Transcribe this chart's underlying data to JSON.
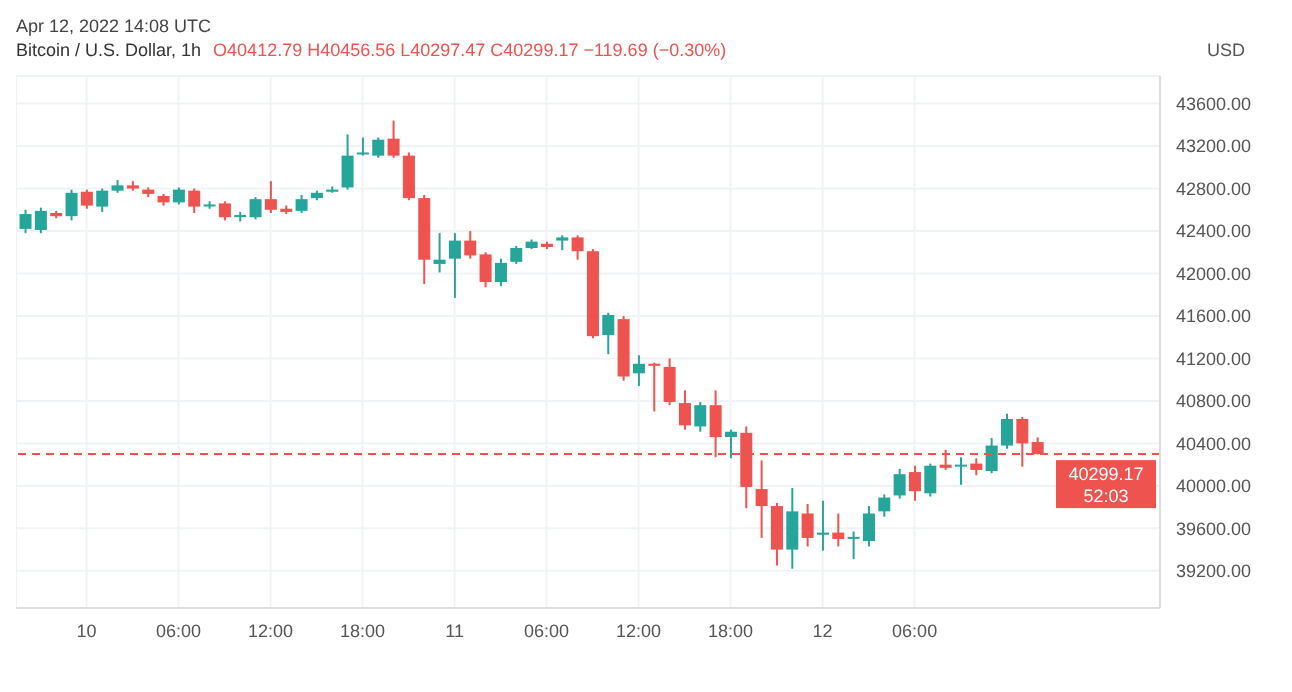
{
  "chart_data": {
    "type": "candlestick",
    "title": "Bitcoin / U.S. Dollar, 1h",
    "subtitle": "O40412.79 H40456.56 L40297.47 C40299.17 −119.69 (−0.30%)",
    "ylabel": "USD",
    "annotations": [
      "Apr 12, 2022 14:08 UTC",
      "52:03"
    ],
    "x": [
      "2022-04-09T20:00",
      "2022-04-09T21:00",
      "2022-04-09T22:00",
      "2022-04-09T23:00",
      "2022-04-10T00:00",
      "2022-04-10T01:00",
      "2022-04-10T02:00",
      "2022-04-10T03:00",
      "2022-04-10T04:00",
      "2022-04-10T05:00",
      "2022-04-10T06:00",
      "2022-04-10T07:00",
      "2022-04-10T08:00",
      "2022-04-10T09:00",
      "2022-04-10T10:00",
      "2022-04-10T11:00",
      "2022-04-10T12:00",
      "2022-04-10T13:00",
      "2022-04-10T14:00",
      "2022-04-10T15:00",
      "2022-04-10T16:00",
      "2022-04-10T17:00",
      "2022-04-10T18:00",
      "2022-04-10T19:00",
      "2022-04-10T20:00",
      "2022-04-10T21:00",
      "2022-04-10T22:00",
      "2022-04-10T23:00",
      "2022-04-11T00:00",
      "2022-04-11T01:00",
      "2022-04-11T02:00",
      "2022-04-11T03:00",
      "2022-04-11T04:00",
      "2022-04-11T05:00",
      "2022-04-11T06:00",
      "2022-04-11T07:00",
      "2022-04-11T08:00",
      "2022-04-11T09:00",
      "2022-04-11T10:00",
      "2022-04-11T11:00",
      "2022-04-11T12:00",
      "2022-04-11T13:00",
      "2022-04-11T14:00",
      "2022-04-11T15:00",
      "2022-04-11T16:00",
      "2022-04-11T17:00",
      "2022-04-11T18:00",
      "2022-04-11T19:00",
      "2022-04-11T20:00",
      "2022-04-11T21:00",
      "2022-04-11T22:00",
      "2022-04-11T23:00",
      "2022-04-12T00:00",
      "2022-04-12T01:00",
      "2022-04-12T02:00",
      "2022-04-12T03:00",
      "2022-04-12T04:00",
      "2022-04-12T05:00",
      "2022-04-12T06:00",
      "2022-04-12T07:00",
      "2022-04-12T08:00",
      "2022-04-12T09:00",
      "2022-04-12T10:00",
      "2022-04-12T11:00",
      "2022-04-12T12:00",
      "2022-04-12T13:00",
      "2022-04-12T14:00"
    ],
    "ohlc": [
      [
        42420,
        42600,
        42380,
        42560
      ],
      [
        42410,
        42620,
        42380,
        42590
      ],
      [
        42570,
        42590,
        42520,
        42540
      ],
      [
        42540,
        42790,
        42500,
        42760
      ],
      [
        42770,
        42790,
        42610,
        42640
      ],
      [
        42630,
        42800,
        42580,
        42780
      ],
      [
        42780,
        42880,
        42760,
        42830
      ],
      [
        42830,
        42870,
        42780,
        42800
      ],
      [
        42790,
        42810,
        42720,
        42750
      ],
      [
        42730,
        42750,
        42640,
        42670
      ],
      [
        42670,
        42810,
        42650,
        42790
      ],
      [
        42780,
        42800,
        42570,
        42630
      ],
      [
        42640,
        42680,
        42610,
        42650
      ],
      [
        42660,
        42680,
        42500,
        42530
      ],
      [
        42540,
        42580,
        42490,
        42550
      ],
      [
        42530,
        42720,
        42510,
        42700
      ],
      [
        42700,
        42870,
        42570,
        42600
      ],
      [
        42610,
        42640,
        42560,
        42580
      ],
      [
        42590,
        42740,
        42570,
        42700
      ],
      [
        42710,
        42780,
        42690,
        42760
      ],
      [
        42770,
        42820,
        42760,
        42790
      ],
      [
        42810,
        43310,
        42790,
        43110
      ],
      [
        43130,
        43280,
        43110,
        43140
      ],
      [
        43110,
        43280,
        43090,
        43260
      ],
      [
        43270,
        43440,
        43090,
        43110
      ],
      [
        43110,
        43140,
        42690,
        42710
      ],
      [
        42710,
        42740,
        41900,
        42130
      ],
      [
        42090,
        42380,
        42010,
        42130
      ],
      [
        42140,
        42380,
        41770,
        42310
      ],
      [
        42310,
        42400,
        42140,
        42170
      ],
      [
        42180,
        42200,
        41870,
        41920
      ],
      [
        41920,
        42140,
        41880,
        42100
      ],
      [
        42110,
        42260,
        42090,
        42240
      ],
      [
        42240,
        42320,
        42230,
        42300
      ],
      [
        42280,
        42300,
        42230,
        42250
      ],
      [
        42310,
        42360,
        42220,
        42340
      ],
      [
        42340,
        42360,
        42130,
        42210
      ],
      [
        42210,
        42230,
        41390,
        41410
      ],
      [
        41420,
        41630,
        41240,
        41610
      ],
      [
        41570,
        41600,
        40990,
        41030
      ],
      [
        41060,
        41230,
        40940,
        41150
      ],
      [
        41150,
        41160,
        40700,
        41140
      ],
      [
        41120,
        41200,
        40760,
        40790
      ],
      [
        40780,
        40900,
        40530,
        40570
      ],
      [
        40560,
        40790,
        40510,
        40760
      ],
      [
        40760,
        40900,
        40270,
        40460
      ],
      [
        40460,
        40530,
        40260,
        40510
      ],
      [
        40500,
        40560,
        39790,
        39990
      ],
      [
        39970,
        40240,
        39510,
        39810
      ],
      [
        39810,
        39840,
        39250,
        39400
      ],
      [
        39400,
        39980,
        39220,
        39760
      ],
      [
        39740,
        39830,
        39430,
        39510
      ],
      [
        39540,
        39860,
        39390,
        39560
      ],
      [
        39560,
        39740,
        39430,
        39500
      ],
      [
        39510,
        39570,
        39310,
        39520
      ],
      [
        39480,
        39810,
        39430,
        39740
      ],
      [
        39760,
        39920,
        39710,
        39890
      ],
      [
        39910,
        40160,
        39880,
        40110
      ],
      [
        40130,
        40190,
        39860,
        39950
      ],
      [
        39930,
        40210,
        39900,
        40190
      ],
      [
        40200,
        40340,
        40150,
        40170
      ],
      [
        40190,
        40270,
        40010,
        40200
      ],
      [
        40210,
        40260,
        40100,
        40150
      ],
      [
        40140,
        40450,
        40120,
        40380
      ],
      [
        40380,
        40680,
        40350,
        40630
      ],
      [
        40630,
        40650,
        40180,
        40400
      ],
      [
        40412.79,
        40456.56,
        40297.47,
        40299.17
      ]
    ],
    "colors": [
      "#26a69a",
      "#26a69a",
      "#ef5350",
      "#26a69a",
      "#ef5350",
      "#26a69a",
      "#26a69a",
      "#ef5350",
      "#ef5350",
      "#ef5350",
      "#26a69a",
      "#ef5350",
      "#26a69a",
      "#ef5350",
      "#26a69a",
      "#26a69a",
      "#ef5350",
      "#ef5350",
      "#26a69a",
      "#26a69a",
      "#26a69a",
      "#26a69a",
      "#26a69a",
      "#26a69a",
      "#ef5350",
      "#ef5350",
      "#ef5350",
      "#26a69a",
      "#26a69a",
      "#ef5350",
      "#ef5350",
      "#26a69a",
      "#26a69a",
      "#26a69a",
      "#ef5350",
      "#26a69a",
      "#ef5350",
      "#ef5350",
      "#26a69a",
      "#ef5350",
      "#26a69a",
      "#ef5350",
      "#ef5350",
      "#ef5350",
      "#26a69a",
      "#ef5350",
      "#26a69a",
      "#ef5350",
      "#ef5350",
      "#ef5350",
      "#26a69a",
      "#ef5350",
      "#26a69a",
      "#ef5350",
      "#26a69a",
      "#26a69a",
      "#26a69a",
      "#26a69a",
      "#ef5350",
      "#26a69a",
      "#ef5350",
      "#26a69a",
      "#ef5350",
      "#26a69a",
      "#26a69a",
      "#ef5350",
      "#ef5350"
    ],
    "xlim": [
      "2022-04-09T19:24",
      "2022-04-12T22:00"
    ],
    "xticks": [
      {
        "value": "2022-04-10T00:00",
        "label": "10"
      },
      {
        "value": "2022-04-10T06:00",
        "label": "06:00"
      },
      {
        "value": "2022-04-10T12:00",
        "label": "12:00"
      },
      {
        "value": "2022-04-10T18:00",
        "label": "18:00"
      },
      {
        "value": "2022-04-11T00:00",
        "label": "11"
      },
      {
        "value": "2022-04-11T06:00",
        "label": "06:00"
      },
      {
        "value": "2022-04-11T12:00",
        "label": "12:00"
      },
      {
        "value": "2022-04-11T18:00",
        "label": "18:00"
      },
      {
        "value": "2022-04-12T00:00",
        "label": "12"
      },
      {
        "value": "2022-04-12T06:00",
        "label": "06:00"
      }
    ],
    "ylim": [
      38850,
      43860
    ],
    "yticks": [
      {
        "value": 39200,
        "label": "39200.00"
      },
      {
        "value": 39600,
        "label": "39600.00"
      },
      {
        "value": 40000,
        "label": "40000.00"
      },
      {
        "value": 40400,
        "label": "40400.00"
      },
      {
        "value": 40800,
        "label": "40800.00"
      },
      {
        "value": 41200,
        "label": "41200.00"
      },
      {
        "value": 41600,
        "label": "41600.00"
      },
      {
        "value": 42000,
        "label": "42000.00"
      },
      {
        "value": 42400,
        "label": "42400.00"
      },
      {
        "value": 42800,
        "label": "42800.00"
      },
      {
        "value": 43200,
        "label": "43200.00"
      },
      {
        "value": 43600,
        "label": "43600.00"
      }
    ],
    "grid": true,
    "ref_lines": [
      {
        "axis": "y",
        "value": 40299.17,
        "label": "40299.17",
        "color": "#ef5350",
        "line_style": "dashed"
      }
    ]
  }
}
